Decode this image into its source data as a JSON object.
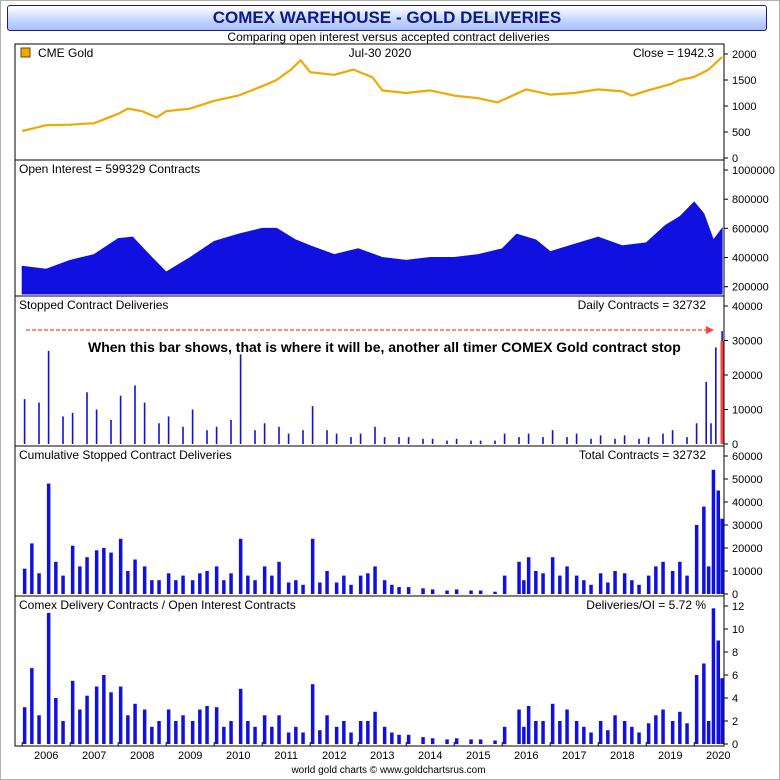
{
  "header": {
    "title": "COMEX WAREHOUSE - GOLD DELIVERIES",
    "subtitle": "Comparing open interest versus accepted contract deliveries",
    "footer": "world gold charts © www.goldchartsrus.com"
  },
  "colors": {
    "price": "#f2a800",
    "bars": "#1010e0",
    "annotation": "#ff4040",
    "background": "#ffffff",
    "grid": "#000000"
  },
  "chart_data": [
    {
      "type": "line",
      "panel_id": "price",
      "label": "CME Gold",
      "date_label": "Jul-30  2020",
      "value_label": "Close = 1942.3",
      "ylim": [
        0,
        2000
      ],
      "yticks": [
        0,
        500,
        1000,
        1500,
        2000
      ],
      "series": [
        {
          "name": "CME Gold",
          "x": [
            2006.0,
            2006.5,
            2007.0,
            2007.5,
            2008.0,
            2008.2,
            2008.5,
            2008.8,
            2009.0,
            2009.5,
            2010.0,
            2010.5,
            2011.0,
            2011.3,
            2011.6,
            2011.8,
            2012.0,
            2012.5,
            2012.9,
            2013.3,
            2013.5,
            2014.0,
            2014.5,
            2015.0,
            2015.5,
            2015.9,
            2016.5,
            2017.0,
            2017.5,
            2018.0,
            2018.5,
            2018.7,
            2019.0,
            2019.5,
            2019.7,
            2020.0,
            2020.3,
            2020.58
          ],
          "values": [
            520,
            630,
            640,
            670,
            850,
            950,
            900,
            780,
            900,
            950,
            1100,
            1200,
            1380,
            1500,
            1700,
            1880,
            1650,
            1600,
            1700,
            1550,
            1300,
            1250,
            1300,
            1200,
            1150,
            1070,
            1320,
            1220,
            1250,
            1320,
            1280,
            1200,
            1290,
            1420,
            1500,
            1560,
            1700,
            1942.3
          ]
        }
      ]
    },
    {
      "type": "area",
      "panel_id": "open-interest",
      "label": "Open Interest = 599329 Contracts",
      "ylim": [
        150000,
        1000000
      ],
      "yticks": [
        200000,
        400000,
        600000,
        800000,
        1000000
      ],
      "series": [
        {
          "name": "Open Interest",
          "x": [
            2006.0,
            2006.5,
            2007.0,
            2007.5,
            2008.0,
            2008.3,
            2008.7,
            2009.0,
            2009.5,
            2010.0,
            2010.5,
            2011.0,
            2011.3,
            2011.7,
            2012.0,
            2012.5,
            2013.0,
            2013.5,
            2014.0,
            2014.5,
            2015.0,
            2015.5,
            2016.0,
            2016.3,
            2016.7,
            2017.0,
            2017.5,
            2018.0,
            2018.5,
            2019.0,
            2019.4,
            2019.7,
            2020.0,
            2020.2,
            2020.4,
            2020.58
          ],
          "values": [
            340000,
            320000,
            380000,
            420000,
            530000,
            540000,
            400000,
            300000,
            400000,
            510000,
            560000,
            600000,
            600000,
            520000,
            480000,
            420000,
            460000,
            400000,
            380000,
            400000,
            400000,
            420000,
            460000,
            560000,
            520000,
            440000,
            490000,
            540000,
            480000,
            500000,
            620000,
            680000,
            780000,
            700000,
            520000,
            599329
          ]
        }
      ]
    },
    {
      "type": "bar",
      "panel_id": "daily-deliveries",
      "label": "Stopped Contract Deliveries",
      "value_label": "Daily Contracts = 32732",
      "annotation": "When this bar shows, that is where it will be, another all timer COMEX Gold contract stop",
      "ylim": [
        0,
        40000
      ],
      "yticks": [
        0,
        10000,
        20000,
        30000,
        40000
      ],
      "series": [
        {
          "name": "Daily Contracts",
          "x": [
            2006.05,
            2006.35,
            2006.55,
            2006.85,
            2007.05,
            2007.35,
            2007.55,
            2007.85,
            2008.05,
            2008.35,
            2008.55,
            2008.85,
            2009.05,
            2009.35,
            2009.55,
            2009.85,
            2010.05,
            2010.35,
            2010.55,
            2010.85,
            2011.05,
            2011.35,
            2011.55,
            2011.85,
            2012.05,
            2012.35,
            2012.55,
            2012.85,
            2013.05,
            2013.35,
            2013.55,
            2013.85,
            2014.05,
            2014.35,
            2014.55,
            2014.85,
            2015.05,
            2015.35,
            2015.55,
            2015.85,
            2016.05,
            2016.35,
            2016.55,
            2016.85,
            2017.05,
            2017.35,
            2017.55,
            2017.85,
            2018.05,
            2018.35,
            2018.55,
            2018.85,
            2019.05,
            2019.35,
            2019.55,
            2019.85,
            2020.05,
            2020.25,
            2020.35,
            2020.45,
            2020.58
          ],
          "values": [
            13000,
            12000,
            27000,
            8000,
            9000,
            15000,
            10000,
            7000,
            14000,
            17000,
            12000,
            6000,
            8000,
            5000,
            10000,
            4000,
            5000,
            7000,
            26000,
            4000,
            6000,
            5000,
            3000,
            4000,
            11000,
            4000,
            3000,
            2000,
            3000,
            5000,
            2000,
            2000,
            2000,
            1500,
            1500,
            1000,
            1500,
            1000,
            1000,
            1000,
            3000,
            2000,
            3000,
            2000,
            4000,
            2000,
            3000,
            1500,
            2500,
            1500,
            2500,
            1500,
            2000,
            3000,
            4000,
            2000,
            6000,
            18000,
            6000,
            28000,
            32732
          ]
        }
      ]
    },
    {
      "type": "bar",
      "panel_id": "cumulative-deliveries",
      "label": "Cumulative Stopped Contract Deliveries",
      "value_label": "Total Contracts = 32732",
      "ylim": [
        0,
        60000
      ],
      "yticks": [
        0,
        10000,
        20000,
        30000,
        40000,
        50000,
        60000
      ],
      "series": [
        {
          "name": "Cumulative Contracts",
          "x": [
            2006.05,
            2006.2,
            2006.35,
            2006.55,
            2006.7,
            2006.85,
            2007.05,
            2007.2,
            2007.35,
            2007.55,
            2007.7,
            2007.85,
            2008.05,
            2008.2,
            2008.35,
            2008.55,
            2008.7,
            2008.85,
            2009.05,
            2009.2,
            2009.35,
            2009.55,
            2009.7,
            2009.85,
            2010.05,
            2010.2,
            2010.35,
            2010.55,
            2010.7,
            2010.85,
            2011.05,
            2011.2,
            2011.35,
            2011.55,
            2011.7,
            2011.85,
            2012.05,
            2012.2,
            2012.35,
            2012.55,
            2012.7,
            2012.85,
            2013.05,
            2013.2,
            2013.35,
            2013.55,
            2013.7,
            2013.85,
            2014.05,
            2014.35,
            2014.55,
            2014.85,
            2015.05,
            2015.35,
            2015.55,
            2015.85,
            2016.05,
            2016.35,
            2016.45,
            2016.55,
            2016.7,
            2016.85,
            2017.05,
            2017.2,
            2017.35,
            2017.55,
            2017.7,
            2017.85,
            2018.05,
            2018.2,
            2018.35,
            2018.55,
            2018.7,
            2018.85,
            2019.05,
            2019.2,
            2019.35,
            2019.55,
            2019.7,
            2019.85,
            2020.05,
            2020.2,
            2020.3,
            2020.4,
            2020.5,
            2020.58
          ],
          "values": [
            11000,
            22000,
            9000,
            48000,
            14000,
            8000,
            21000,
            12000,
            16000,
            19000,
            20000,
            18000,
            24000,
            10000,
            15000,
            12000,
            6000,
            6000,
            9000,
            6000,
            8000,
            6000,
            9000,
            10000,
            12000,
            6000,
            9000,
            24000,
            8000,
            6000,
            12000,
            8000,
            14000,
            5000,
            6000,
            4000,
            24000,
            5000,
            10000,
            5000,
            8000,
            4000,
            8000,
            9000,
            12000,
            6000,
            4000,
            3000,
            3000,
            2500,
            2000,
            1500,
            2000,
            1500,
            1500,
            1000,
            8000,
            14000,
            6000,
            16000,
            10000,
            9000,
            16000,
            8000,
            12000,
            8000,
            6000,
            4000,
            9000,
            5000,
            10000,
            9000,
            6000,
            4000,
            8000,
            12000,
            14000,
            10000,
            14000,
            8000,
            30000,
            38000,
            12000,
            54000,
            45000,
            32732
          ]
        }
      ]
    },
    {
      "type": "bar",
      "panel_id": "delivery-ratio",
      "label": "Comex Delivery Contracts / Open Interest Contracts",
      "value_label": "Deliveries/OI = 5.72 %",
      "ylim": [
        0,
        12
      ],
      "yticks": [
        0,
        2,
        4,
        6,
        8,
        10,
        12
      ],
      "xticks": [
        "2006",
        "2007",
        "2008",
        "2009",
        "2010",
        "2011",
        "2012",
        "2013",
        "2014",
        "2015",
        "2016",
        "2017",
        "2018",
        "2019",
        "2020"
      ],
      "series": [
        {
          "name": "Deliveries/OI",
          "x": [
            2006.05,
            2006.2,
            2006.35,
            2006.55,
            2006.7,
            2006.85,
            2007.05,
            2007.2,
            2007.35,
            2007.55,
            2007.7,
            2007.85,
            2008.05,
            2008.2,
            2008.35,
            2008.55,
            2008.7,
            2008.85,
            2009.05,
            2009.2,
            2009.35,
            2009.55,
            2009.7,
            2009.85,
            2010.05,
            2010.2,
            2010.35,
            2010.55,
            2010.7,
            2010.85,
            2011.05,
            2011.2,
            2011.35,
            2011.55,
            2011.7,
            2011.85,
            2012.05,
            2012.2,
            2012.35,
            2012.55,
            2012.7,
            2012.85,
            2013.05,
            2013.2,
            2013.35,
            2013.55,
            2013.7,
            2013.85,
            2014.05,
            2014.35,
            2014.55,
            2014.85,
            2015.05,
            2015.35,
            2015.55,
            2015.85,
            2016.05,
            2016.35,
            2016.45,
            2016.55,
            2016.7,
            2016.85,
            2017.05,
            2017.2,
            2017.35,
            2017.55,
            2017.7,
            2017.85,
            2018.05,
            2018.2,
            2018.35,
            2018.55,
            2018.7,
            2018.85,
            2019.05,
            2019.2,
            2019.35,
            2019.55,
            2019.7,
            2019.85,
            2020.05,
            2020.2,
            2020.3,
            2020.4,
            2020.5,
            2020.58
          ],
          "values": [
            3.2,
            6.6,
            2.5,
            11.4,
            4.0,
            2.0,
            5.5,
            3.0,
            4.2,
            5.0,
            6.0,
            4.5,
            5.0,
            2.5,
            3.5,
            3.0,
            1.5,
            2.0,
            3.0,
            2.0,
            2.5,
            2.0,
            3.0,
            3.3,
            3.2,
            1.5,
            2.0,
            4.8,
            2.0,
            1.5,
            2.5,
            1.5,
            2.5,
            1.0,
            1.5,
            1.0,
            5.2,
            1.2,
            2.5,
            1.5,
            2.0,
            1.0,
            2.0,
            2.0,
            2.8,
            1.5,
            1.0,
            0.8,
            0.8,
            0.6,
            0.5,
            0.4,
            0.5,
            0.4,
            0.4,
            0.3,
            1.5,
            3.0,
            1.5,
            3.3,
            2.0,
            2.0,
            3.5,
            2.0,
            3.0,
            2.0,
            1.5,
            1.0,
            2.0,
            1.2,
            2.5,
            2.0,
            1.5,
            1.0,
            1.8,
            2.5,
            3.0,
            2.0,
            2.8,
            1.8,
            6.0,
            7.0,
            2.0,
            11.8,
            9.0,
            5.72
          ]
        }
      ]
    }
  ]
}
